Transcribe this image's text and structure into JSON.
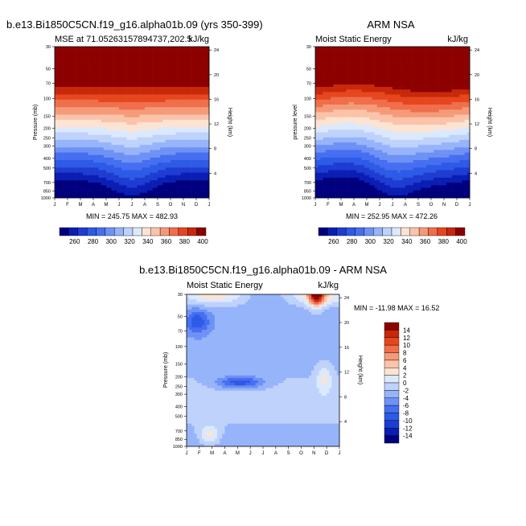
{
  "chart_data": [
    {
      "type": "heatmap",
      "title_left": "b.e13.Bi1850C5CN.f19_g16.alpha01b.09 (yrs 350-399)",
      "subtitle_left": "MSE at 71.05263157894737,202.5",
      "subtitle_right": "kJ/kg",
      "ylabel": "Pressure (mb)",
      "y2label": "Height (km)",
      "x_ticks": [
        "J",
        "F",
        "M",
        "A",
        "M",
        "J",
        "J",
        "A",
        "S",
        "O",
        "N",
        "D",
        "J"
      ],
      "y_ticks": [
        "30",
        "50",
        "70",
        "100",
        "150",
        "200",
        "250",
        "300",
        "400",
        "500",
        "700",
        "850",
        "1000"
      ],
      "y2_ticks": [
        "24",
        "20",
        "16",
        "12",
        "8",
        "4"
      ],
      "stats": "MIN = 245.75  MAX = 482.93",
      "min": 245.75,
      "max": 482.93,
      "colorbar_labels": [
        "260",
        "280",
        "300",
        "320",
        "340",
        "360",
        "380",
        "400"
      ]
    },
    {
      "type": "heatmap",
      "title_center": "ARM NSA",
      "subtitle_left": "Moist Static Energy",
      "subtitle_right": "kJ/kg",
      "ylabel": "pressure level",
      "y2label": "Height (km)",
      "x_ticks": [
        "J",
        "F",
        "M",
        "A",
        "M",
        "J",
        "J",
        "A",
        "S",
        "O",
        "N",
        "D",
        "J"
      ],
      "y_ticks": [
        "30",
        "50",
        "70",
        "100",
        "150",
        "200",
        "250",
        "300",
        "400",
        "500",
        "700",
        "850",
        "1000"
      ],
      "y2_ticks": [
        "24",
        "20",
        "16",
        "12",
        "8",
        "4"
      ],
      "stats": "MIN = 252.95  MAX = 472.26",
      "min": 252.95,
      "max": 472.26,
      "colorbar_labels": [
        "260",
        "280",
        "300",
        "320",
        "340",
        "360",
        "380",
        "400"
      ]
    },
    {
      "type": "heatmap",
      "title_center": "b.e13.Bi1850C5CN.f19_g16.alpha01b.09 - ARM NSA",
      "subtitle_left": "Moist Static Energy",
      "subtitle_right": "kJ/kg",
      "ylabel": "Pressure (mb)",
      "y2label": "Height (km)",
      "x_ticks": [
        "J",
        "F",
        "M",
        "A",
        "M",
        "J",
        "J",
        "A",
        "S",
        "O",
        "N",
        "D",
        "J"
      ],
      "y_ticks": [
        "30",
        "50",
        "70",
        "100",
        "150",
        "200",
        "250",
        "300",
        "400",
        "500",
        "700",
        "850",
        "1000"
      ],
      "y2_ticks": [
        "24",
        "20",
        "16",
        "12",
        "8",
        "4"
      ],
      "stats": "MIN = -11.98  MAX =  16.52",
      "min": -11.98,
      "max": 16.52,
      "colorbar_labels": [
        "14",
        "12",
        "10",
        "8",
        "6",
        "4",
        "2",
        "0",
        "-2",
        "-4",
        "-6",
        "-8",
        "-10",
        "-12",
        "-14"
      ]
    }
  ],
  "colors": {
    "mse_scale": [
      "#00007f",
      "#0a1eb4",
      "#1e3cd2",
      "#2d5ae6",
      "#466ef0",
      "#6e91f5",
      "#96b4fa",
      "#bed2fc",
      "#dce8fc",
      "#fde4d2",
      "#fac3aa",
      "#f59a78",
      "#f06e4b",
      "#e6461e",
      "#c8280a",
      "#8c0000"
    ],
    "diff_scale": [
      "#00007f",
      "#0a1eb4",
      "#1e3cd2",
      "#2d5ae6",
      "#466ef0",
      "#6e91f5",
      "#96b4fa",
      "#bed2fc",
      "#dce8fc",
      "#fde4d2",
      "#fac3aa",
      "#f59a78",
      "#f06e4b",
      "#e6461e",
      "#c8280a",
      "#8c0000"
    ]
  }
}
